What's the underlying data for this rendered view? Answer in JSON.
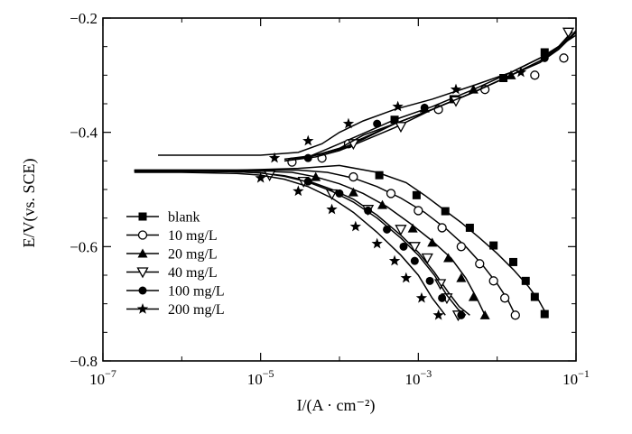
{
  "chart_data": {
    "type": "line",
    "title": "",
    "xlabel": "I/(A · cm⁻²)",
    "ylabel": "E/V(vs. SCE)",
    "xscale": "log",
    "xlim": [
      1e-07,
      0.1
    ],
    "ylim": [
      -0.8,
      -0.2
    ],
    "xticks": [
      {
        "value": 1e-07,
        "base": "10",
        "exp": "−7"
      },
      {
        "value": 1e-05,
        "base": "10",
        "exp": "−5"
      },
      {
        "value": 0.001,
        "base": "10",
        "exp": "−3"
      },
      {
        "value": 0.1,
        "base": "10",
        "exp": "−1"
      }
    ],
    "yticks": [
      {
        "value": -0.8,
        "label": "−0.8"
      },
      {
        "value": -0.6,
        "label": "−0.6"
      },
      {
        "value": -0.4,
        "label": "−0.4"
      },
      {
        "value": -0.2,
        "label": "−0.2"
      }
    ],
    "grid": false,
    "legend_position": "bottom-left",
    "series": [
      {
        "name": "blank",
        "marker": "square",
        "cathodic": [
          [
            2.5e-07,
            -0.466
          ],
          [
            1e-06,
            -0.466
          ],
          [
            5e-06,
            -0.466
          ],
          [
            1e-05,
            -0.465
          ],
          [
            3e-05,
            -0.463
          ],
          [
            0.0001,
            -0.458
          ],
          [
            0.0003,
            -0.47
          ],
          [
            0.0007,
            -0.488
          ],
          [
            0.0012,
            -0.51
          ],
          [
            0.002,
            -0.533
          ],
          [
            0.0035,
            -0.558
          ],
          [
            0.006,
            -0.585
          ],
          [
            0.01,
            -0.612
          ],
          [
            0.016,
            -0.64
          ],
          [
            0.025,
            -0.67
          ],
          [
            0.034,
            -0.695
          ],
          [
            0.042,
            -0.718
          ]
        ],
        "anodic": [
          [
            4e-05,
            -0.443
          ],
          [
            6e-05,
            -0.433
          ],
          [
            0.0001,
            -0.42
          ],
          [
            0.0002,
            -0.402
          ],
          [
            0.0005,
            -0.378
          ],
          [
            0.0015,
            -0.355
          ],
          [
            0.005,
            -0.325
          ],
          [
            0.015,
            -0.295
          ],
          [
            0.035,
            -0.27
          ],
          [
            0.06,
            -0.25
          ],
          [
            0.1,
            -0.225
          ]
        ],
        "markers": [
          [
            0.00032,
            -0.475
          ],
          [
            0.00095,
            -0.51
          ],
          [
            0.0022,
            -0.538
          ],
          [
            0.0045,
            -0.567
          ],
          [
            0.009,
            -0.598
          ],
          [
            0.016,
            -0.627
          ],
          [
            0.023,
            -0.66
          ],
          [
            0.03,
            -0.688
          ],
          [
            0.04,
            -0.718
          ],
          [
            0.0005,
            -0.378
          ],
          [
            0.0028,
            -0.342
          ],
          [
            0.012,
            -0.305
          ],
          [
            0.04,
            -0.26
          ]
        ]
      },
      {
        "name": "10 mg/L",
        "marker": "circle-open",
        "cathodic": [
          [
            2.5e-07,
            -0.466
          ],
          [
            1e-06,
            -0.466
          ],
          [
            5e-06,
            -0.466
          ],
          [
            1e-05,
            -0.466
          ],
          [
            3e-05,
            -0.466
          ],
          [
            7e-05,
            -0.47
          ],
          [
            0.00015,
            -0.48
          ],
          [
            0.0003,
            -0.495
          ],
          [
            0.0006,
            -0.515
          ],
          [
            0.0012,
            -0.54
          ],
          [
            0.0023,
            -0.57
          ],
          [
            0.004,
            -0.6
          ],
          [
            0.0065,
            -0.632
          ],
          [
            0.01,
            -0.665
          ],
          [
            0.0135,
            -0.692
          ],
          [
            0.017,
            -0.72
          ]
        ],
        "anodic": [
          [
            3e-05,
            -0.446
          ],
          [
            6e-05,
            -0.437
          ],
          [
            0.0001,
            -0.428
          ],
          [
            0.0002,
            -0.41
          ],
          [
            0.0005,
            -0.385
          ],
          [
            0.0015,
            -0.36
          ],
          [
            0.005,
            -0.33
          ],
          [
            0.015,
            -0.3
          ],
          [
            0.035,
            -0.275
          ],
          [
            0.06,
            -0.255
          ],
          [
            0.1,
            -0.225
          ]
        ],
        "markers": [
          [
            2.5e-05,
            -0.452
          ],
          [
            6e-05,
            -0.445
          ],
          [
            0.00013,
            -0.42
          ],
          [
            0.00015,
            -0.478
          ],
          [
            0.00045,
            -0.507
          ],
          [
            0.001,
            -0.537
          ],
          [
            0.002,
            -0.567
          ],
          [
            0.0035,
            -0.6
          ],
          [
            0.006,
            -0.63
          ],
          [
            0.009,
            -0.66
          ],
          [
            0.0125,
            -0.69
          ],
          [
            0.017,
            -0.72
          ],
          [
            0.0018,
            -0.36
          ],
          [
            0.007,
            -0.325
          ],
          [
            0.03,
            -0.3
          ],
          [
            0.07,
            -0.27
          ]
        ]
      },
      {
        "name": "20 mg/L",
        "marker": "triangle-up",
        "cathodic": [
          [
            2.5e-07,
            -0.467
          ],
          [
            1e-06,
            -0.467
          ],
          [
            5e-06,
            -0.467
          ],
          [
            1e-05,
            -0.468
          ],
          [
            2.5e-05,
            -0.47
          ],
          [
            5e-05,
            -0.478
          ],
          [
            0.0001,
            -0.49
          ],
          [
            0.0002,
            -0.507
          ],
          [
            0.0004,
            -0.53
          ],
          [
            0.0008,
            -0.56
          ],
          [
            0.0015,
            -0.59
          ],
          [
            0.0026,
            -0.62
          ],
          [
            0.004,
            -0.655
          ],
          [
            0.0055,
            -0.69
          ],
          [
            0.007,
            -0.72
          ]
        ],
        "anodic": [
          [
            2e-05,
            -0.447
          ],
          [
            5e-05,
            -0.44
          ],
          [
            0.0001,
            -0.43
          ],
          [
            0.0002,
            -0.412
          ],
          [
            0.0005,
            -0.385
          ],
          [
            0.0015,
            -0.36
          ],
          [
            0.005,
            -0.33
          ],
          [
            0.015,
            -0.3
          ],
          [
            0.035,
            -0.278
          ],
          [
            0.06,
            -0.255
          ],
          [
            0.1,
            -0.222
          ]
        ],
        "markers": [
          [
            5e-05,
            -0.478
          ],
          [
            0.00015,
            -0.505
          ],
          [
            0.00035,
            -0.527
          ],
          [
            0.00085,
            -0.568
          ],
          [
            0.0015,
            -0.593
          ],
          [
            0.0024,
            -0.62
          ],
          [
            0.0035,
            -0.655
          ],
          [
            0.005,
            -0.688
          ],
          [
            0.007,
            -0.72
          ],
          [
            0.0012,
            -0.358
          ],
          [
            0.005,
            -0.325
          ],
          [
            0.015,
            -0.3
          ]
        ]
      },
      {
        "name": "40 mg/L",
        "marker": "triangle-down-open",
        "cathodic": [
          [
            2.5e-07,
            -0.468
          ],
          [
            1e-06,
            -0.468
          ],
          [
            5e-06,
            -0.469
          ],
          [
            1e-05,
            -0.471
          ],
          [
            2e-05,
            -0.476
          ],
          [
            4e-05,
            -0.485
          ],
          [
            8e-05,
            -0.5
          ],
          [
            0.00015,
            -0.517
          ],
          [
            0.0003,
            -0.545
          ],
          [
            0.0006,
            -0.58
          ],
          [
            0.001,
            -0.61
          ],
          [
            0.0016,
            -0.645
          ],
          [
            0.0024,
            -0.68
          ],
          [
            0.0033,
            -0.705
          ],
          [
            0.0045,
            -0.72
          ]
        ],
        "anodic": [
          [
            2e-05,
            -0.45
          ],
          [
            5e-05,
            -0.443
          ],
          [
            0.0001,
            -0.432
          ],
          [
            0.0002,
            -0.415
          ],
          [
            0.0005,
            -0.392
          ],
          [
            0.0015,
            -0.36
          ],
          [
            0.005,
            -0.33
          ],
          [
            0.015,
            -0.3
          ],
          [
            0.035,
            -0.275
          ],
          [
            0.06,
            -0.25
          ],
          [
            0.09,
            -0.223
          ]
        ],
        "markers": [
          [
            1.3e-05,
            -0.475
          ],
          [
            3.5e-05,
            -0.486
          ],
          [
            8e-05,
            -0.508
          ],
          [
            0.00023,
            -0.535
          ],
          [
            0.0006,
            -0.57
          ],
          [
            0.0009,
            -0.6
          ],
          [
            0.0013,
            -0.62
          ],
          [
            0.0019,
            -0.665
          ],
          [
            0.0023,
            -0.69
          ],
          [
            0.0032,
            -0.72
          ],
          [
            0.00015,
            -0.42
          ],
          [
            0.0006,
            -0.39
          ],
          [
            0.003,
            -0.345
          ],
          [
            0.08,
            -0.225
          ]
        ]
      },
      {
        "name": "100 mg/L",
        "marker": "circle-filled",
        "cathodic": [
          [
            2.5e-07,
            -0.468
          ],
          [
            1e-06,
            -0.468
          ],
          [
            5e-06,
            -0.469
          ],
          [
            1e-05,
            -0.471
          ],
          [
            2e-05,
            -0.477
          ],
          [
            4e-05,
            -0.487
          ],
          [
            8e-05,
            -0.503
          ],
          [
            0.00015,
            -0.522
          ],
          [
            0.0003,
            -0.55
          ],
          [
            0.0006,
            -0.585
          ],
          [
            0.001,
            -0.615
          ],
          [
            0.0016,
            -0.65
          ],
          [
            0.0023,
            -0.685
          ],
          [
            0.0032,
            -0.71
          ],
          [
            0.004,
            -0.72
          ]
        ],
        "anodic": [
          [
            2e-05,
            -0.45
          ],
          [
            5e-05,
            -0.44
          ],
          [
            0.0001,
            -0.428
          ],
          [
            0.0002,
            -0.405
          ],
          [
            0.0005,
            -0.385
          ],
          [
            0.0015,
            -0.36
          ],
          [
            0.005,
            -0.33
          ],
          [
            0.015,
            -0.3
          ],
          [
            0.035,
            -0.275
          ],
          [
            0.06,
            -0.252
          ],
          [
            0.09,
            -0.224
          ]
        ],
        "markers": [
          [
            4e-05,
            -0.486
          ],
          [
            0.0001,
            -0.507
          ],
          [
            0.00023,
            -0.537
          ],
          [
            0.0004,
            -0.57
          ],
          [
            0.00065,
            -0.6
          ],
          [
            0.0009,
            -0.625
          ],
          [
            0.0014,
            -0.66
          ],
          [
            0.002,
            -0.69
          ],
          [
            0.0035,
            -0.72
          ],
          [
            4e-05,
            -0.445
          ],
          [
            0.0003,
            -0.385
          ],
          [
            0.0012,
            -0.357
          ],
          [
            0.04,
            -0.27
          ]
        ]
      },
      {
        "name": "200 mg/L",
        "marker": "star",
        "cathodic": [
          [
            2.5e-07,
            -0.47
          ],
          [
            1e-06,
            -0.47
          ],
          [
            5e-06,
            -0.472
          ],
          [
            1e-05,
            -0.475
          ],
          [
            2e-05,
            -0.482
          ],
          [
            4e-05,
            -0.495
          ],
          [
            8e-05,
            -0.515
          ],
          [
            0.00015,
            -0.54
          ],
          [
            0.0003,
            -0.575
          ],
          [
            0.0006,
            -0.615
          ],
          [
            0.001,
            -0.65
          ],
          [
            0.0015,
            -0.69
          ],
          [
            0.0022,
            -0.72
          ]
        ],
        "anodic": [
          [
            5e-07,
            -0.44
          ],
          [
            2e-06,
            -0.44
          ],
          [
            1e-05,
            -0.44
          ],
          [
            3e-05,
            -0.435
          ],
          [
            6e-05,
            -0.42
          ],
          [
            0.0001,
            -0.4
          ],
          [
            0.0002,
            -0.38
          ],
          [
            0.0005,
            -0.36
          ],
          [
            0.0015,
            -0.342
          ],
          [
            0.005,
            -0.318
          ],
          [
            0.015,
            -0.295
          ],
          [
            0.035,
            -0.27
          ],
          [
            0.06,
            -0.25
          ],
          [
            0.1,
            -0.23
          ]
        ],
        "markers": [
          [
            1e-05,
            -0.48
          ],
          [
            3e-05,
            -0.503
          ],
          [
            8e-05,
            -0.535
          ],
          [
            0.00016,
            -0.565
          ],
          [
            0.0003,
            -0.595
          ],
          [
            0.0005,
            -0.625
          ],
          [
            0.0007,
            -0.655
          ],
          [
            0.0011,
            -0.69
          ],
          [
            0.0018,
            -0.72
          ],
          [
            1.5e-05,
            -0.445
          ],
          [
            4e-05,
            -0.415
          ],
          [
            0.00013,
            -0.385
          ],
          [
            0.00055,
            -0.355
          ],
          [
            0.003,
            -0.325
          ],
          [
            0.02,
            -0.295
          ]
        ]
      }
    ]
  }
}
